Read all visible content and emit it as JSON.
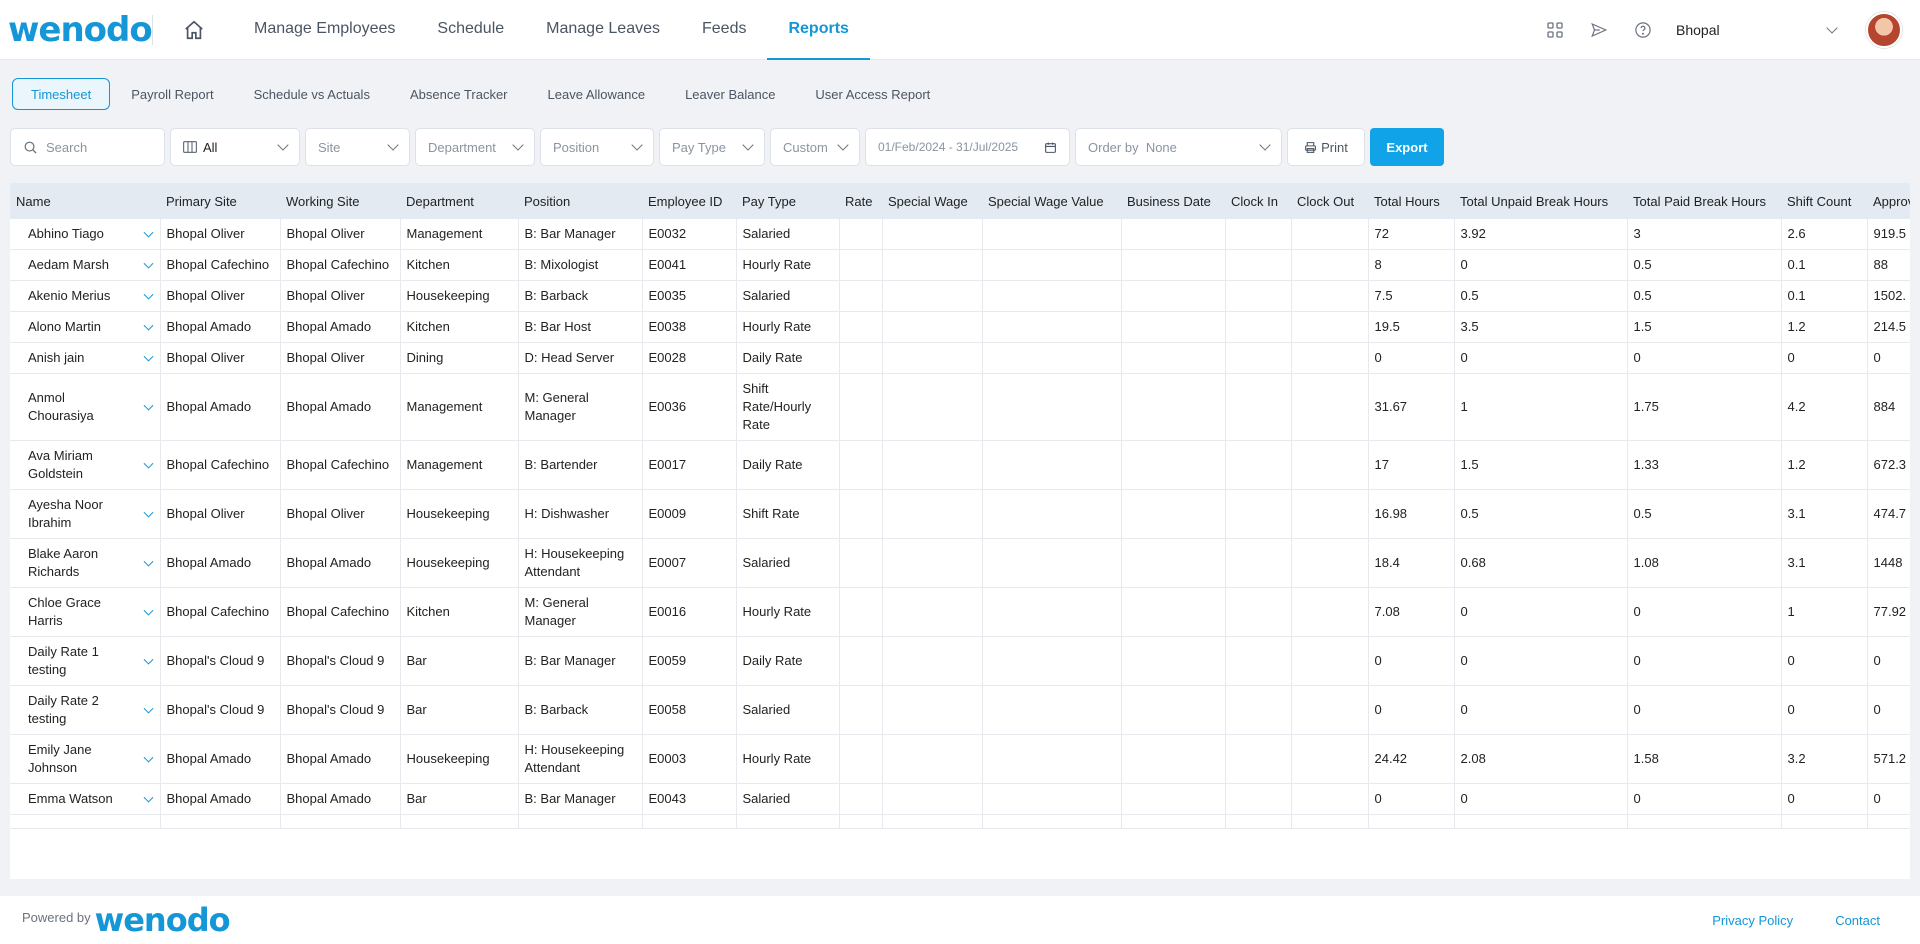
{
  "brand": {
    "logo_text": "wenodo",
    "accent": "#1596d6"
  },
  "nav": {
    "items": [
      {
        "label": "Manage Employees"
      },
      {
        "label": "Schedule"
      },
      {
        "label": "Manage Leaves"
      },
      {
        "label": "Feeds"
      },
      {
        "label": "Reports"
      }
    ],
    "active": "Reports"
  },
  "header": {
    "location": "Bhopal"
  },
  "subtabs": {
    "items": [
      "Timesheet",
      "Payroll Report",
      "Schedule vs Actuals",
      "Absence Tracker",
      "Leave Allowance",
      "Leaver Balance",
      "User Access Report"
    ],
    "active": "Timesheet"
  },
  "filters": {
    "search_placeholder": "Search",
    "view": "All",
    "site": "Site",
    "department": "Department",
    "position": "Position",
    "pay_type": "Pay Type",
    "range": "Custom",
    "date_range": "01/Feb/2024 - 31/Jul/2025",
    "order_label": "Order by",
    "order_value": "None",
    "print_label": "Print",
    "export_label": "Export"
  },
  "table": {
    "columns": [
      "Name",
      "Primary Site",
      "Working Site",
      "Department",
      "Position",
      "Employee ID",
      "Pay Type",
      "Rate",
      "Special Wage",
      "Special Wage Value",
      "Business Date",
      "Clock In",
      "Clock Out",
      "Total Hours",
      "Total Unpaid Break Hours",
      "Total Paid Break Hours",
      "Shift Count",
      "Approved Hours"
    ],
    "rows": [
      [
        "Abhino Tiago",
        "Bhopal Oliver",
        "Bhopal Oliver",
        "Management",
        "B: Bar Manager",
        "E0032",
        "Salaried",
        "",
        "",
        "",
        "",
        "",
        "",
        "72",
        "3.92",
        "3",
        "2.6",
        "919.5"
      ],
      [
        "Aedam Marsh",
        "Bhopal Cafechino",
        "Bhopal Cafechino",
        "Kitchen",
        "B: Mixologist",
        "E0041",
        "Hourly Rate",
        "",
        "",
        "",
        "",
        "",
        "",
        "8",
        "0",
        "0.5",
        "0.1",
        "88"
      ],
      [
        "Akenio Merius",
        "Bhopal Oliver",
        "Bhopal Oliver",
        "Housekeeping",
        "B: Barback",
        "E0035",
        "Salaried",
        "",
        "",
        "",
        "",
        "",
        "",
        "7.5",
        "0.5",
        "0.5",
        "0.1",
        "1502."
      ],
      [
        "Alono Martin",
        "Bhopal Amado",
        "Bhopal Amado",
        "Kitchen",
        "B: Bar Host",
        "E0038",
        "Hourly Rate",
        "",
        "",
        "",
        "",
        "",
        "",
        "19.5",
        "3.5",
        "1.5",
        "1.2",
        "214.5"
      ],
      [
        "Anish jain",
        "Bhopal Oliver",
        "Bhopal Oliver",
        "Dining",
        "D: Head Server",
        "E0028",
        "Daily Rate",
        "",
        "",
        "",
        "",
        "",
        "",
        "0",
        "0",
        "0",
        "0",
        "0"
      ],
      [
        "Anmol Chourasiya",
        "Bhopal Amado",
        "Bhopal Amado",
        "Management",
        "M: General Manager",
        "E0036",
        "Shift Rate/Hourly Rate",
        "",
        "",
        "",
        "",
        "",
        "",
        "31.67",
        "1",
        "1.75",
        "4.2",
        "884"
      ],
      [
        "Ava Miriam Goldstein",
        "Bhopal Cafechino",
        "Bhopal Cafechino",
        "Management",
        "B: Bartender",
        "E0017",
        "Daily Rate",
        "",
        "",
        "",
        "",
        "",
        "",
        "17",
        "1.5",
        "1.33",
        "1.2",
        "672.3"
      ],
      [
        "Ayesha Noor Ibrahim",
        "Bhopal Oliver",
        "Bhopal Oliver",
        "Housekeeping",
        "H: Dishwasher",
        "E0009",
        "Shift Rate",
        "",
        "",
        "",
        "",
        "",
        "",
        "16.98",
        "0.5",
        "0.5",
        "3.1",
        "474.7"
      ],
      [
        "Blake Aaron Richards",
        "Bhopal Amado",
        "Bhopal Amado",
        "Housekeeping",
        "H: Housekeeping Attendant",
        "E0007",
        "Salaried",
        "",
        "",
        "",
        "",
        "",
        "",
        "18.4",
        "0.68",
        "1.08",
        "3.1",
        "1448"
      ],
      [
        "Chloe Grace Harris",
        "Bhopal Cafechino",
        "Bhopal Cafechino",
        "Kitchen",
        "M: General Manager",
        "E0016",
        "Hourly Rate",
        "",
        "",
        "",
        "",
        "",
        "",
        "7.08",
        "0",
        "0",
        "1",
        "77.92"
      ],
      [
        "Daily Rate 1 testing",
        "Bhopal's Cloud 9",
        "Bhopal's Cloud 9",
        "Bar",
        "B: Bar Manager",
        "E0059",
        "Daily Rate",
        "",
        "",
        "",
        "",
        "",
        "",
        "0",
        "0",
        "0",
        "0",
        "0"
      ],
      [
        "Daily Rate 2 testing",
        "Bhopal's Cloud 9",
        "Bhopal's Cloud 9",
        "Bar",
        "B: Barback",
        "E0058",
        "Salaried",
        "",
        "",
        "",
        "",
        "",
        "",
        "0",
        "0",
        "0",
        "0",
        "0"
      ],
      [
        "Emily Jane Johnson",
        "Bhopal Amado",
        "Bhopal Amado",
        "Housekeeping",
        "H: Housekeeping Attendant",
        "E0003",
        "Hourly Rate",
        "",
        "",
        "",
        "",
        "",
        "",
        "24.42",
        "2.08",
        "1.58",
        "3.2",
        "571.2"
      ],
      [
        "Emma Watson",
        "Bhopal Amado",
        "Bhopal Amado",
        "Bar",
        "B: Bar Manager",
        "E0043",
        "Salaried",
        "",
        "",
        "",
        "",
        "",
        "",
        "0",
        "0",
        "0",
        "0",
        "0"
      ],
      [
        "",
        "",
        "",
        "",
        "",
        "",
        "",
        "",
        "",
        "",
        "",
        "",
        "",
        "",
        "",
        "",
        "",
        ""
      ]
    ]
  },
  "footer": {
    "powered_by": "Powered by",
    "logo_text": "wenodo",
    "links": [
      "Privacy Policy",
      "Contact"
    ]
  }
}
